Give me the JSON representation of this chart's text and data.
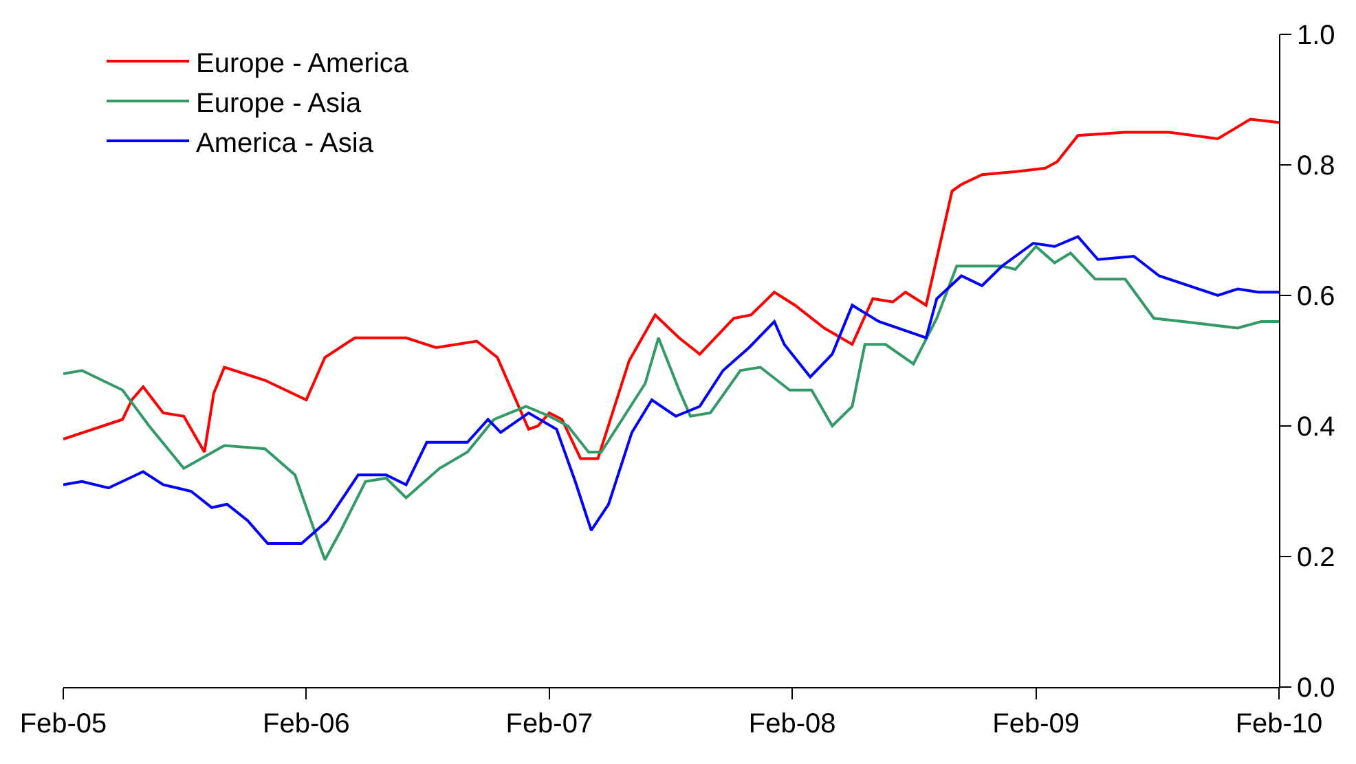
{
  "chart_data": {
    "type": "line",
    "legend": "top left",
    "grid": false,
    "line_style": "solid",
    "marker": "none",
    "xlim": [
      "2005-02-01",
      "2010-02-01"
    ],
    "xticks": [
      {
        "value": "2005-02-01",
        "label": "Feb-05"
      },
      {
        "value": "2006-02-01",
        "label": "Feb-06"
      },
      {
        "value": "2007-02-01",
        "label": "Feb-07"
      },
      {
        "value": "2008-02-01",
        "label": "Feb-08"
      },
      {
        "value": "2009-02-01",
        "label": "Feb-09"
      },
      {
        "value": "2010-02-01",
        "label": "Feb-10"
      }
    ],
    "ylim": [
      0,
      1
    ],
    "yticks": [
      {
        "value": 0,
        "label": "0.0"
      },
      {
        "value": 0.2,
        "label": "0.2"
      },
      {
        "value": 0.4,
        "label": "0.4"
      },
      {
        "value": 0.6,
        "label": "0.6"
      },
      {
        "value": 0.8,
        "label": "0.8"
      },
      {
        "value": 1,
        "label": "1.0"
      }
    ],
    "series": [
      {
        "name": "Europe - America",
        "color": "#ff0000",
        "x": [
          "2005-02-01",
          "2005-05-01",
          "2005-05-15",
          "2005-06-01",
          "2005-07-01",
          "2005-08-01",
          "2005-09-01",
          "2005-09-15",
          "2005-10-01",
          "2005-12-01",
          "2006-02-01",
          "2006-03-01",
          "2006-04-15",
          "2006-07-01",
          "2006-08-15",
          "2006-10-15",
          "2006-11-15",
          "2007-01-01",
          "2007-01-15",
          "2007-02-01",
          "2007-02-20",
          "2007-03-20",
          "2007-04-15",
          "2007-06-01",
          "2007-07-10",
          "2007-08-15",
          "2007-09-15",
          "2007-11-05",
          "2007-12-01",
          "2008-01-05",
          "2008-02-05",
          "2008-03-20",
          "2008-05-01",
          "2008-06-01",
          "2008-07-01",
          "2008-07-20",
          "2008-08-20",
          "2008-09-28",
          "2008-10-12",
          "2008-11-12",
          "2009-01-05",
          "2009-02-15",
          "2009-03-05",
          "2009-04-05",
          "2009-06-15",
          "2009-08-20",
          "2009-11-01",
          "2009-12-20",
          "2010-02-01"
        ],
        "values": [
          0.38,
          0.41,
          0.44,
          0.46,
          0.42,
          0.415,
          0.36,
          0.45,
          0.49,
          0.47,
          0.44,
          0.505,
          0.535,
          0.535,
          0.52,
          0.53,
          0.505,
          0.395,
          0.4,
          0.42,
          0.41,
          0.35,
          0.35,
          0.5,
          0.57,
          0.535,
          0.51,
          0.565,
          0.57,
          0.605,
          0.585,
          0.55,
          0.525,
          0.595,
          0.59,
          0.605,
          0.585,
          0.76,
          0.77,
          0.785,
          0.79,
          0.795,
          0.805,
          0.845,
          0.85,
          0.85,
          0.84,
          0.87,
          0.865
        ]
      },
      {
        "name": "Europe - Asia",
        "color": "#339966",
        "x": [
          "2005-02-01",
          "2005-03-01",
          "2005-05-01",
          "2005-06-10",
          "2005-08-01",
          "2005-10-01",
          "2005-12-01",
          "2006-01-15",
          "2006-02-20",
          "2006-03-01",
          "2006-03-25",
          "2006-05-01",
          "2006-06-01",
          "2006-07-01",
          "2006-08-20",
          "2006-10-01",
          "2006-11-10",
          "2006-12-28",
          "2007-02-01",
          "2007-03-01",
          "2007-04-01",
          "2007-04-20",
          "2007-06-25",
          "2007-07-15",
          "2007-08-15",
          "2007-09-01",
          "2007-10-01",
          "2007-11-15",
          "2007-12-15",
          "2008-01-28",
          "2008-03-01",
          "2008-04-01",
          "2008-05-01",
          "2008-05-20",
          "2008-06-20",
          "2008-08-01",
          "2008-09-05",
          "2008-10-05",
          "2008-12-12",
          "2009-01-01",
          "2009-02-01",
          "2009-03-01",
          "2009-03-25",
          "2009-05-01",
          "2009-06-15",
          "2009-07-28",
          "2009-09-10",
          "2009-12-01",
          "2010-01-05",
          "2010-02-01"
        ],
        "values": [
          0.48,
          0.485,
          0.455,
          0.4,
          0.335,
          0.37,
          0.365,
          0.325,
          0.22,
          0.195,
          0.24,
          0.315,
          0.32,
          0.29,
          0.335,
          0.36,
          0.41,
          0.43,
          0.415,
          0.4,
          0.36,
          0.36,
          0.465,
          0.535,
          0.455,
          0.415,
          0.42,
          0.485,
          0.49,
          0.455,
          0.455,
          0.4,
          0.43,
          0.525,
          0.525,
          0.495,
          0.565,
          0.645,
          0.645,
          0.64,
          0.675,
          0.65,
          0.665,
          0.625,
          0.625,
          0.565,
          0.56,
          0.55,
          0.56,
          0.56
        ]
      },
      {
        "name": "America - Asia",
        "color": "#0000ff",
        "x": [
          "2005-02-01",
          "2005-03-01",
          "2005-04-10",
          "2005-06-01",
          "2005-07-01",
          "2005-08-12",
          "2005-09-12",
          "2005-10-05",
          "2005-11-05",
          "2005-12-05",
          "2006-01-25",
          "2006-03-05",
          "2006-04-20",
          "2006-06-01",
          "2006-07-01",
          "2006-08-01",
          "2006-10-01",
          "2006-11-01",
          "2006-11-20",
          "2007-01-01",
          "2007-02-12",
          "2007-03-12",
          "2007-04-05",
          "2007-05-01",
          "2007-06-05",
          "2007-07-05",
          "2007-08-10",
          "2007-09-15",
          "2007-10-20",
          "2007-11-28",
          "2008-01-05",
          "2008-01-20",
          "2008-02-28",
          "2008-04-01",
          "2008-05-01",
          "2008-06-10",
          "2008-08-20",
          "2008-09-05",
          "2008-10-12",
          "2008-11-12",
          "2008-12-12",
          "2009-01-28",
          "2009-03-01",
          "2009-04-05",
          "2009-05-05",
          "2009-06-28",
          "2009-08-05",
          "2009-11-01",
          "2009-12-01",
          "2010-01-01",
          "2010-02-01"
        ],
        "values": [
          0.31,
          0.315,
          0.305,
          0.33,
          0.31,
          0.3,
          0.275,
          0.28,
          0.255,
          0.22,
          0.22,
          0.255,
          0.325,
          0.325,
          0.31,
          0.375,
          0.375,
          0.41,
          0.39,
          0.42,
          0.395,
          0.315,
          0.24,
          0.28,
          0.39,
          0.44,
          0.415,
          0.43,
          0.485,
          0.52,
          0.56,
          0.525,
          0.475,
          0.51,
          0.585,
          0.56,
          0.535,
          0.595,
          0.63,
          0.615,
          0.645,
          0.68,
          0.675,
          0.69,
          0.655,
          0.66,
          0.63,
          0.6,
          0.61,
          0.605,
          0.605
        ]
      }
    ]
  }
}
